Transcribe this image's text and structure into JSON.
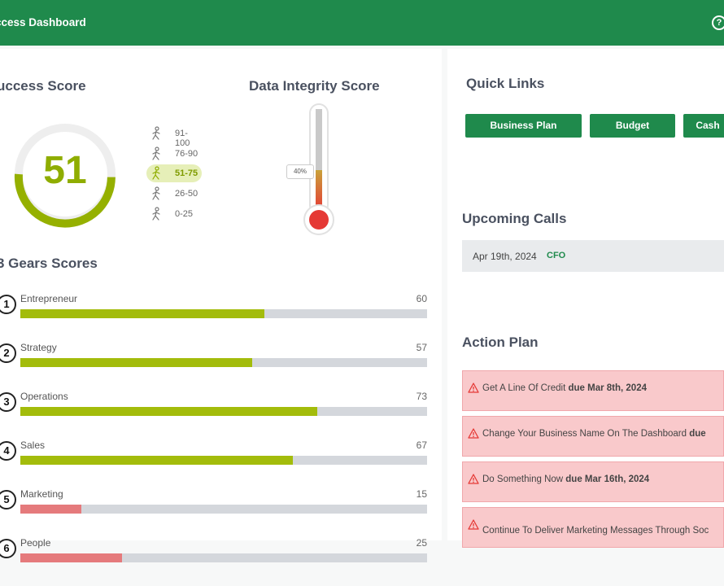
{
  "header": {
    "title": "ccess Dashboard",
    "help_icon": "?"
  },
  "success": {
    "title": "uccess Score",
    "score": "51",
    "score_fraction": 0.51,
    "legend": [
      {
        "range": "91-100",
        "icon": "figure-run-icon",
        "active": false
      },
      {
        "range": "76-90",
        "icon": "figure-jog-icon",
        "active": false
      },
      {
        "range": "51-75",
        "icon": "figure-walk-icon",
        "active": true
      },
      {
        "range": "26-50",
        "icon": "figure-crawl-icon",
        "active": false
      },
      {
        "range": "0-25",
        "icon": "figure-sit-icon",
        "active": false
      }
    ]
  },
  "integrity": {
    "title": "Data Integrity Score",
    "percent_label": "40%",
    "level": 0.4
  },
  "gears": {
    "title": "3 Gears Scores",
    "rows": [
      {
        "num": "1",
        "name": "Entrepreneur",
        "value": "60",
        "pct": 60,
        "color": "#a3bc0b"
      },
      {
        "num": "2",
        "name": "Strategy",
        "value": "57",
        "pct": 57,
        "color": "#a3bc0b"
      },
      {
        "num": "3",
        "name": "Operations",
        "value": "73",
        "pct": 73,
        "color": "#a3bc0b"
      },
      {
        "num": "4",
        "name": "Sales",
        "value": "67",
        "pct": 67,
        "color": "#a3bc0b"
      },
      {
        "num": "5",
        "name": "Marketing",
        "value": "15",
        "pct": 15,
        "color": "#e57a7c"
      },
      {
        "num": "6",
        "name": "People",
        "value": "25",
        "pct": 25,
        "color": "#e57a7c"
      }
    ]
  },
  "quick_links": {
    "title": "Quick Links",
    "buttons": [
      "Business Plan",
      "Budget",
      "Cash"
    ]
  },
  "upcoming_calls": {
    "title": "Upcoming Calls",
    "calls": [
      {
        "date": "Apr 19th, 2024",
        "role": "CFO"
      }
    ]
  },
  "action_plan": {
    "title": "Action Plan",
    "items": [
      {
        "text": "Get A Line Of Credit ",
        "due": "due Mar 8th, 2024"
      },
      {
        "text": "Change Your Business Name On The Dashboard ",
        "due": "due"
      },
      {
        "text": "Do Something Now ",
        "due": "due Mar 16th, 2024"
      },
      {
        "text": "Continue To Deliver Marketing Messages Through Soc",
        "due": ""
      }
    ]
  },
  "colors": {
    "brand_green": "#1f8a4c",
    "score_green": "#8fad00",
    "danger_red": "#e53935"
  }
}
